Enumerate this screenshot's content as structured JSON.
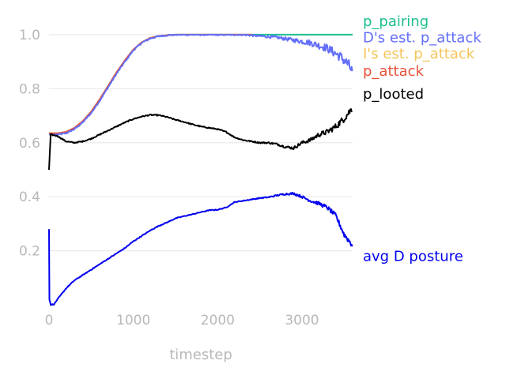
{
  "chart_data": {
    "type": "line",
    "title": "",
    "xlabel": "timestep",
    "ylabel": "",
    "xlim": [
      0,
      3600
    ],
    "ylim": [
      0.0,
      1.07
    ],
    "x_ticks": [
      0,
      1000,
      2000,
      3000
    ],
    "y_ticks": [
      0.2,
      0.4,
      0.6,
      0.8,
      1.0
    ],
    "grid": "horizontal",
    "legend": "labels at line ends, right",
    "series": [
      {
        "name": "p_pairing",
        "color": "#1bbf8f",
        "noise": 0,
        "x": [
          0,
          100,
          200,
          300,
          400,
          500,
          600,
          700,
          800,
          900,
          1000,
          1100,
          1200,
          1300,
          1400,
          1500,
          1600,
          1800,
          2000,
          2400,
          2800,
          3200,
          3600
        ],
        "y": [
          0.635,
          0.635,
          0.64,
          0.655,
          0.68,
          0.715,
          0.76,
          0.81,
          0.86,
          0.905,
          0.945,
          0.972,
          0.988,
          0.995,
          0.998,
          1.0,
          1.0,
          1.0,
          1.0,
          1.0,
          1.0,
          1.0,
          1.0
        ]
      },
      {
        "name": "I's est. p_attack",
        "color": "#f5c45a",
        "noise": 0,
        "x": [
          0,
          100,
          200,
          300,
          400,
          500,
          600,
          700,
          800,
          900,
          1000,
          1100,
          1200,
          1300,
          1400,
          1500,
          1600,
          1800,
          2000,
          2400
        ],
        "y": [
          0.635,
          0.635,
          0.64,
          0.655,
          0.68,
          0.715,
          0.76,
          0.81,
          0.86,
          0.905,
          0.945,
          0.972,
          0.988,
          0.995,
          0.998,
          1.0,
          1.0,
          1.0,
          1.0,
          1.0
        ]
      },
      {
        "name": "p_attack",
        "color": "#e8533a",
        "noise": 0,
        "x": [
          0,
          100,
          200,
          300,
          400,
          500,
          600,
          700,
          800,
          900,
          1000,
          1100,
          1200,
          1300,
          1400,
          1500,
          1600,
          1800,
          2000,
          2400
        ],
        "y": [
          0.635,
          0.635,
          0.64,
          0.655,
          0.68,
          0.715,
          0.76,
          0.81,
          0.86,
          0.905,
          0.945,
          0.972,
          0.988,
          0.995,
          0.998,
          1.0,
          1.0,
          1.0,
          1.0,
          1.0
        ]
      },
      {
        "name": "D's est. p_attack",
        "color": "#636efa",
        "noise": 0.012,
        "x": [
          0,
          100,
          200,
          300,
          400,
          500,
          600,
          700,
          800,
          900,
          1000,
          1100,
          1200,
          1300,
          1400,
          1500,
          1600,
          1800,
          2000,
          2300,
          2500,
          2700,
          2900,
          3100,
          3300,
          3450,
          3550,
          3600
        ],
        "y": [
          0.63,
          0.63,
          0.635,
          0.65,
          0.675,
          0.71,
          0.755,
          0.805,
          0.855,
          0.9,
          0.942,
          0.97,
          0.986,
          0.994,
          0.998,
          1.0,
          1.0,
          1.0,
          1.0,
          1.0,
          0.995,
          0.99,
          0.98,
          0.97,
          0.95,
          0.92,
          0.89,
          0.86
        ]
      },
      {
        "name": "p_looted",
        "color": "#000000",
        "noise": 0.008,
        "x": [
          0,
          20,
          100,
          200,
          300,
          400,
          500,
          600,
          700,
          800,
          900,
          1000,
          1100,
          1200,
          1300,
          1400,
          1500,
          1600,
          1700,
          1800,
          1900,
          2000,
          2100,
          2200,
          2300,
          2400,
          2500,
          2600,
          2700,
          2800,
          2900,
          3000,
          3100,
          3200,
          3300,
          3400,
          3500,
          3600
        ],
        "y": [
          0.5,
          0.63,
          0.625,
          0.605,
          0.6,
          0.605,
          0.615,
          0.63,
          0.645,
          0.66,
          0.675,
          0.688,
          0.697,
          0.703,
          0.702,
          0.695,
          0.685,
          0.677,
          0.668,
          0.66,
          0.655,
          0.65,
          0.64,
          0.62,
          0.61,
          0.605,
          0.6,
          0.6,
          0.595,
          0.585,
          0.58,
          0.6,
          0.61,
          0.63,
          0.64,
          0.66,
          0.69,
          0.73
        ]
      },
      {
        "name": "avg D posture",
        "color": "#0000ee",
        "noise": 0.006,
        "x": [
          0,
          5,
          20,
          60,
          100,
          200,
          300,
          400,
          500,
          600,
          700,
          800,
          900,
          1000,
          1100,
          1200,
          1300,
          1400,
          1500,
          1600,
          1700,
          1800,
          1900,
          2000,
          2100,
          2200,
          2300,
          2400,
          2500,
          2600,
          2700,
          2800,
          2900,
          3000,
          3100,
          3200,
          3300,
          3400,
          3500,
          3600
        ],
        "y": [
          0.28,
          0.02,
          0.0,
          0.002,
          0.02,
          0.06,
          0.09,
          0.11,
          0.13,
          0.15,
          0.17,
          0.19,
          0.21,
          0.235,
          0.255,
          0.275,
          0.292,
          0.305,
          0.32,
          0.328,
          0.335,
          0.343,
          0.35,
          0.352,
          0.36,
          0.38,
          0.385,
          0.39,
          0.395,
          0.398,
          0.405,
          0.41,
          0.412,
          0.4,
          0.385,
          0.375,
          0.36,
          0.33,
          0.26,
          0.22
        ]
      }
    ],
    "labels": [
      {
        "text": "p_pairing",
        "color": "#1bbf8f",
        "y": 1.05
      },
      {
        "text": "D's est. p_attack",
        "color": "#636efa",
        "y": 0.99
      },
      {
        "text": "I's est. p_attack",
        "color": "#f5c45a",
        "y": 0.93
      },
      {
        "text": "p_attack",
        "color": "#e8533a",
        "y": 0.865
      },
      {
        "text": "p_looted",
        "color": "#000000",
        "y": 0.78
      },
      {
        "text": "avg D posture",
        "color": "#0000ee",
        "y": 0.18
      }
    ]
  }
}
